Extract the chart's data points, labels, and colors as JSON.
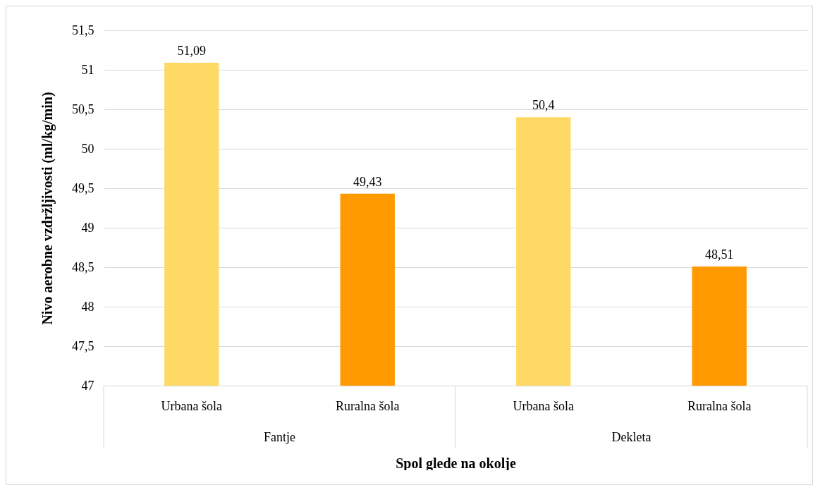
{
  "chart_data": {
    "type": "bar",
    "xlabel": "Spol glede na okolje",
    "ylabel": "Nivo aerobne vzdržljivosti (ml/kg/min)",
    "categories": [
      "Urbana šola",
      "Ruralna šola",
      "Urbana šola",
      "Ruralna šola"
    ],
    "values": [
      51.09,
      49.43,
      50.4,
      48.51
    ],
    "value_labels": [
      "51,09",
      "49,43",
      "50,4",
      "48,51"
    ],
    "colors": [
      "#ffd966",
      "#ff9900",
      "#ffd966",
      "#ff9900"
    ],
    "ylim": [
      47,
      51.5
    ],
    "yticks": [
      47,
      {
        "value": 47.5,
        "label": "47,5"
      },
      48,
      {
        "value": 48.5,
        "label": "48,5"
      },
      49,
      {
        "value": 49.5,
        "label": "49,5"
      },
      50,
      {
        "value": 50.5,
        "label": "50,5"
      },
      51,
      {
        "value": 51.5,
        "label": "51,5"
      }
    ],
    "annotations": [
      "Fantje",
      "Dekleta"
    ],
    "grid": "y"
  }
}
